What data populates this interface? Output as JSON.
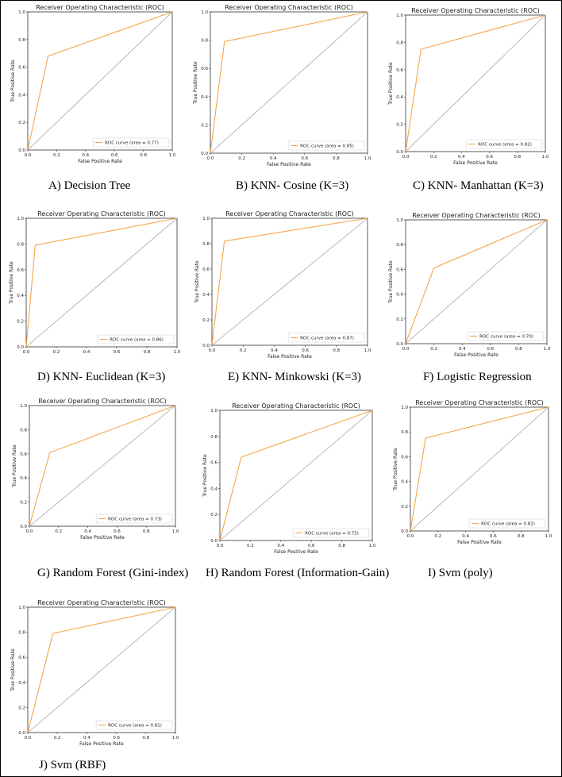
{
  "figure": {
    "panels": [
      {
        "caption": "A) Decision Tree"
      },
      {
        "caption": "B) KNN- Cosine (K=3)"
      },
      {
        "caption": "C) KNN- Manhattan (K=3)"
      },
      {
        "caption": "D) KNN- Euclidean (K=3)"
      },
      {
        "caption": "E) KNN- Minkowski (K=3)"
      },
      {
        "caption": "F) Logistic Regression"
      },
      {
        "caption": "G) Random Forest (Gini-index)"
      },
      {
        "caption": "H) Random Forest (Information-Gain)"
      },
      {
        "caption": "I) Svm (poly)"
      },
      {
        "caption": "J) Svm (RBF)"
      }
    ]
  },
  "colors": {
    "roc": "#f5a54a",
    "diagonal": "#9a9a9a",
    "axis": "#333333"
  },
  "chart_data": [
    {
      "type": "line",
      "title": "Receiver Operating Characteristic (ROC)",
      "xlabel": "False Positive Rate",
      "ylabel": "True Positive Rate",
      "xlim": [
        0,
        1
      ],
      "ylim": [
        0,
        1
      ],
      "xticks": [
        "0.0",
        "0.2",
        "0.4",
        "0.6",
        "0.8",
        "1.0"
      ],
      "yticks": [
        "0.0",
        "0.2",
        "0.4",
        "0.6",
        "0.8",
        "1.0"
      ],
      "legend_position": "lower-right",
      "series": [
        {
          "name": "ROC curve (area = 0.77)",
          "x": [
            0,
            0.14,
            1
          ],
          "y": [
            0,
            0.68,
            1
          ]
        }
      ],
      "diagonal": {
        "x": [
          0,
          1
        ],
        "y": [
          0,
          1
        ]
      }
    },
    {
      "type": "line",
      "title": "Receiver Operating Characteristic (ROC)",
      "xlabel": "False Positive Rate",
      "ylabel": "True Positive Rate",
      "xlim": [
        0,
        1
      ],
      "ylim": [
        0,
        1
      ],
      "xticks": [
        "0.0",
        "0.2",
        "0.4",
        "0.6",
        "0.8",
        "1.0"
      ],
      "yticks": [
        "0.0",
        "0.2",
        "0.4",
        "0.6",
        "0.8",
        "1.0"
      ],
      "legend_position": "lower-right",
      "series": [
        {
          "name": "ROC curve (area = 0.85)",
          "x": [
            0,
            0.09,
            1
          ],
          "y": [
            0,
            0.79,
            1
          ]
        }
      ],
      "diagonal": {
        "x": [
          0,
          1
        ],
        "y": [
          0,
          1
        ]
      }
    },
    {
      "type": "line",
      "title": "Receiver Operating Characteristic (ROC)",
      "xlabel": "False Positive Rate",
      "ylabel": "True Positive Rate",
      "xlim": [
        0,
        1
      ],
      "ylim": [
        0,
        1
      ],
      "xticks": [
        "0.0",
        "0.2",
        "0.4",
        "0.6",
        "0.8",
        "1.0"
      ],
      "yticks": [
        "0.0",
        "0.2",
        "0.4",
        "0.6",
        "0.8",
        "1.0"
      ],
      "legend_position": "lower-right",
      "series": [
        {
          "name": "ROC curve (area = 0.82)",
          "x": [
            0,
            0.11,
            1
          ],
          "y": [
            0,
            0.75,
            1
          ]
        }
      ],
      "diagonal": {
        "x": [
          0,
          1
        ],
        "y": [
          0,
          1
        ]
      }
    },
    {
      "type": "line",
      "title": "Receiver Operating Characteristic (ROC)",
      "xlabel": "",
      "ylabel": "True Positive Rate",
      "xlim": [
        0,
        1
      ],
      "ylim": [
        0,
        1
      ],
      "xticks": [
        "0.0",
        "0.2",
        "0.4",
        "0.6",
        "0.8",
        "1.0"
      ],
      "yticks": [
        "0.0",
        "0.2",
        "0.4",
        "0.6",
        "0.8",
        "1.0"
      ],
      "legend_position": "lower-right",
      "series": [
        {
          "name": "ROC curve (area = 0.86)",
          "x": [
            0,
            0.06,
            1
          ],
          "y": [
            0,
            0.79,
            1
          ]
        }
      ],
      "diagonal": {
        "x": [
          0,
          1
        ],
        "y": [
          0,
          1
        ]
      }
    },
    {
      "type": "line",
      "title": "Receiver Operating Characteristic (ROC)",
      "xlabel": "False Positive Rate",
      "ylabel": "True Positive Rate",
      "xlim": [
        0,
        1
      ],
      "ylim": [
        0,
        1
      ],
      "xticks": [
        "0.0",
        "0.2",
        "0.4",
        "0.6",
        "0.8",
        "1.0"
      ],
      "yticks": [
        "0.0",
        "0.2",
        "0.4",
        "0.6",
        "0.8",
        "1.0"
      ],
      "legend_position": "lower-right",
      "series": [
        {
          "name": "ROC curve (area = 0.87)",
          "x": [
            0,
            0.08,
            1
          ],
          "y": [
            0,
            0.82,
            1
          ]
        }
      ],
      "diagonal": {
        "x": [
          0,
          1
        ],
        "y": [
          0,
          1
        ]
      }
    },
    {
      "type": "line",
      "title": "Receiver Operating Characteristic (ROC)",
      "xlabel": "False Positive Rate",
      "ylabel": "True Positive Rate",
      "xlim": [
        0,
        1
      ],
      "ylim": [
        0,
        1
      ],
      "xticks": [
        "0.0",
        "0.2",
        "0.4",
        "0.6",
        "0.8",
        "1.0"
      ],
      "yticks": [
        "0.0",
        "0.2",
        "0.4",
        "0.6",
        "0.8",
        "1.0"
      ],
      "legend_position": "lower-right",
      "series": [
        {
          "name": "ROC curve (area = 0.70)",
          "x": [
            0,
            0.2,
            1
          ],
          "y": [
            0,
            0.61,
            1
          ]
        }
      ],
      "diagonal": {
        "x": [
          0,
          1
        ],
        "y": [
          0,
          1
        ]
      }
    },
    {
      "type": "line",
      "title": "Receiver Operating Characteristic (ROC)",
      "xlabel": "False Positive Rate",
      "ylabel": "True Positive Rate",
      "xlim": [
        0,
        1
      ],
      "ylim": [
        0,
        1
      ],
      "xticks": [
        "0.0",
        "0.2",
        "0.4",
        "0.6",
        "0.8",
        "1.0"
      ],
      "yticks": [
        "0.0",
        "0.2",
        "0.4",
        "0.6",
        "0.8",
        "1.0"
      ],
      "legend_position": "lower-right",
      "series": [
        {
          "name": "ROC curve (area = 0.73)",
          "x": [
            0,
            0.14,
            1
          ],
          "y": [
            0,
            0.61,
            1
          ]
        }
      ],
      "diagonal": {
        "x": [
          0,
          1
        ],
        "y": [
          0,
          1
        ]
      }
    },
    {
      "type": "line",
      "title": "Receiver Operating Characteristic (ROC)",
      "xlabel": "False Positive Rate",
      "ylabel": "True Positive Rate",
      "xlim": [
        0,
        1
      ],
      "ylim": [
        0,
        1
      ],
      "xticks": [
        "0.0",
        "0.2",
        "0.4",
        "0.6",
        "0.8",
        "1.0"
      ],
      "yticks": [
        "0.0",
        "0.2",
        "0.4",
        "0.6",
        "0.8",
        "1.0"
      ],
      "legend_position": "lower-right",
      "series": [
        {
          "name": "ROC curve (area = 0.75)",
          "x": [
            0,
            0.14,
            1
          ],
          "y": [
            0,
            0.64,
            1
          ]
        }
      ],
      "diagonal": {
        "x": [
          0,
          1
        ],
        "y": [
          0,
          1
        ]
      }
    },
    {
      "type": "line",
      "title": "Receiver Operating Characteristic (ROC)",
      "xlabel": "False Positive Rate",
      "ylabel": "True Positive Rate",
      "xlim": [
        0,
        1
      ],
      "ylim": [
        0,
        1
      ],
      "xticks": [
        "0.0",
        "0.2",
        "0.4",
        "0.6",
        "0.8",
        "1.0"
      ],
      "yticks": [
        "0.0",
        "0.2",
        "0.4",
        "0.6",
        "0.8",
        "1.0"
      ],
      "legend_position": "lower-right",
      "series": [
        {
          "name": "ROC curve (area = 0.82)",
          "x": [
            0,
            0.11,
            1
          ],
          "y": [
            0,
            0.75,
            1
          ]
        }
      ],
      "diagonal": {
        "x": [
          0,
          1
        ],
        "y": [
          0,
          1
        ]
      }
    },
    {
      "type": "line",
      "title": "Receiver Operating Characteristic (ROC)",
      "xlabel": "False Positive Rate",
      "ylabel": "True Positive Rate",
      "xlim": [
        0,
        1
      ],
      "ylim": [
        0,
        1
      ],
      "xticks": [
        "0.0",
        "0.2",
        "0.4",
        "0.6",
        "0.8",
        "1.0"
      ],
      "yticks": [
        "0.0",
        "0.2",
        "0.4",
        "0.6",
        "0.8",
        "1.0"
      ],
      "legend_position": "lower-right",
      "series": [
        {
          "name": "ROC curve (area = 0.81)",
          "x": [
            0,
            0.17,
            1
          ],
          "y": [
            0,
            0.79,
            1
          ]
        }
      ],
      "diagonal": {
        "x": [
          0,
          1
        ],
        "y": [
          0,
          1
        ]
      }
    }
  ]
}
